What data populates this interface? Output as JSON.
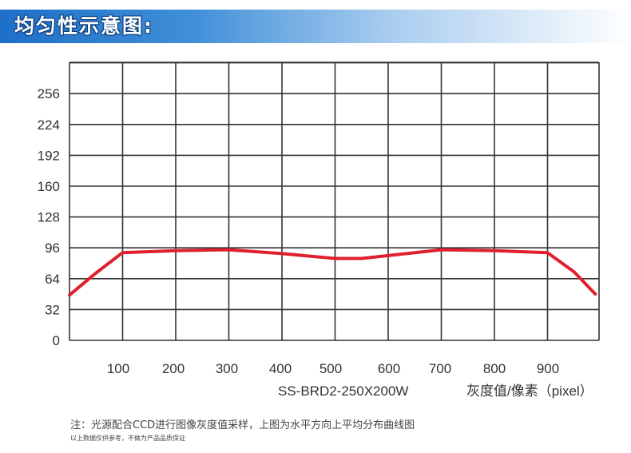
{
  "header": {
    "title": "均匀性示意图:"
  },
  "chart_data": {
    "type": "line",
    "x_ticks": [
      "100",
      "200",
      "300",
      "400",
      "500",
      "600",
      "700",
      "800",
      "900"
    ],
    "y_ticks": [
      "0",
      "32",
      "64",
      "96",
      "128",
      "160",
      "192",
      "224",
      "256"
    ],
    "model_label": "SS-BRD2-250X200W",
    "xlabel": "灰度值/像素（pixel）",
    "line_color": "#e0202e",
    "series": [
      {
        "values": [
          [
            0,
            47
          ],
          [
            50,
            70
          ],
          [
            100,
            91
          ],
          [
            150,
            92
          ],
          [
            200,
            93
          ],
          [
            300,
            94
          ],
          [
            400,
            90
          ],
          [
            500,
            85
          ],
          [
            550,
            85
          ],
          [
            600,
            88
          ],
          [
            700,
            94
          ],
          [
            800,
            93
          ],
          [
            900,
            91
          ],
          [
            950,
            71
          ],
          [
            990,
            48
          ]
        ]
      }
    ]
  },
  "notes": {
    "main": "注：光源配合CCD进行图像灰度值采样，上图为水平方向上平均分布曲线图",
    "disclaimer": "以上数据仅供参考，不做为产品品质保证"
  }
}
